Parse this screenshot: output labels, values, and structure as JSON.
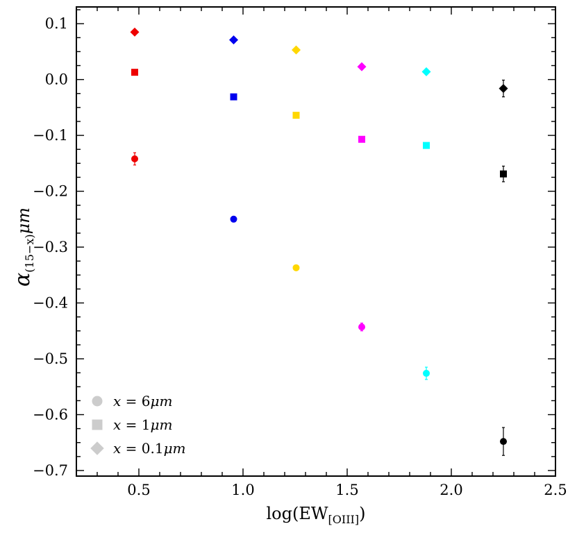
{
  "chart_data": {
    "type": "scatter",
    "title": "",
    "xlabel": "log(EW",
    "xlabel_sub": "[OIII]",
    "xlabel_close": ")",
    "ylabel": "α",
    "ylabel_sub": "(15−x)",
    "ylabel_unit": "μm",
    "xlim": [
      0.2,
      2.5
    ],
    "ylim": [
      -0.71,
      0.13
    ],
    "x_ticks": [
      0.5,
      1.0,
      1.5,
      2.0,
      2.5
    ],
    "x_tick_labels": [
      "0.5",
      "1.0",
      "1.5",
      "2.0",
      "2.5"
    ],
    "x_minor_step": 0.1,
    "y_ticks": [
      0.1,
      0.0,
      -0.1,
      -0.2,
      -0.3,
      -0.4,
      -0.5,
      -0.6,
      -0.7
    ],
    "y_tick_labels": [
      "0.1",
      "0.0",
      "−0.1",
      "−0.2",
      "−0.3",
      "−0.4",
      "−0.5",
      "−0.6",
      "−0.7"
    ],
    "y_minor_step": 0.025,
    "grid": false,
    "legend_position": "bottom-left",
    "point_colors": [
      "#ee0000",
      "#0000ee",
      "#ffd700",
      "#ff00ff",
      "#00ffff",
      "#000000"
    ],
    "legend_color": "#cccccc",
    "series": [
      {
        "name": "x = 6μm",
        "marker": "circle",
        "legend": {
          "var": "x",
          "eq": " = 6",
          "unit": "μm"
        },
        "x": [
          0.48,
          0.955,
          1.255,
          1.57,
          1.88,
          2.25
        ],
        "y": [
          -0.142,
          -0.25,
          -0.337,
          -0.443,
          -0.526,
          -0.648
        ],
        "yerr": [
          0.011,
          0.005,
          0.003,
          0.007,
          0.011,
          0.025
        ]
      },
      {
        "name": "x = 1μm",
        "marker": "square",
        "legend": {
          "var": "x",
          "eq": " = 1",
          "unit": "μm"
        },
        "x": [
          0.48,
          0.955,
          1.255,
          1.57,
          1.88,
          2.25
        ],
        "y": [
          0.013,
          -0.031,
          -0.064,
          -0.107,
          -0.118,
          -0.169
        ],
        "yerr": [
          0.002,
          0.002,
          0.002,
          0.002,
          0.004,
          0.014
        ]
      },
      {
        "name": "x = 0.1μm",
        "marker": "diamond",
        "legend": {
          "var": "x",
          "eq": " = 0.1",
          "unit": "μm"
        },
        "x": [
          0.48,
          0.955,
          1.255,
          1.57,
          1.88,
          2.25
        ],
        "y": [
          0.085,
          0.071,
          0.053,
          0.023,
          0.014,
          -0.016
        ],
        "yerr": [
          0.001,
          0.001,
          0.001,
          0.001,
          0.001,
          0.015
        ]
      }
    ]
  }
}
